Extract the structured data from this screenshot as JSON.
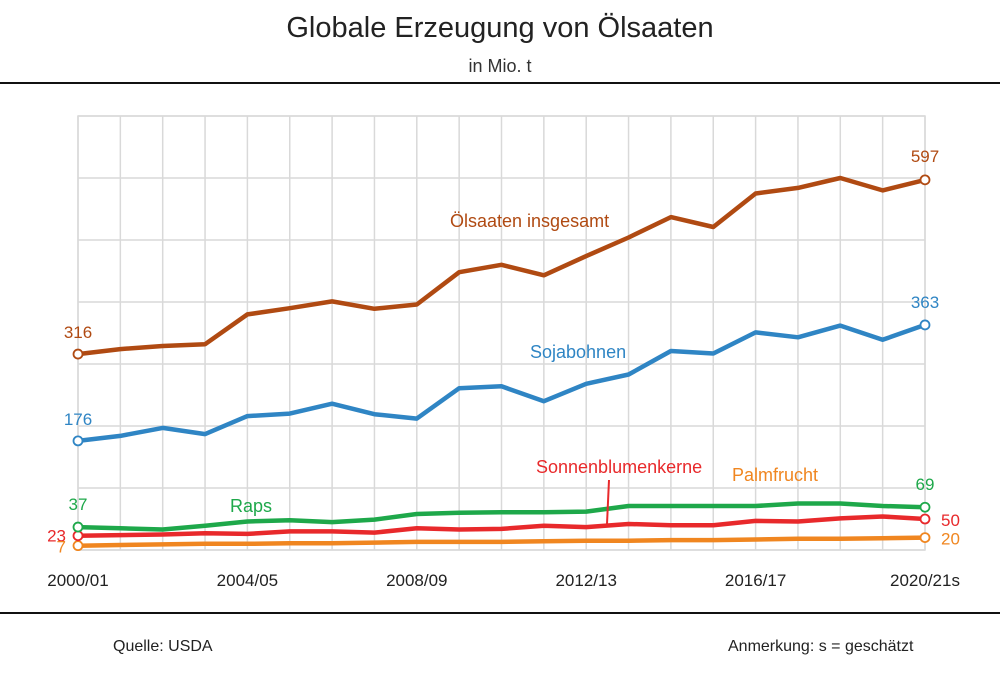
{
  "title": "Globale Erzeugung von Ölsaaten",
  "subtitle": "in Mio. t",
  "footer": {
    "source": "Quelle: USDA",
    "note": "Anmerkung: s = geschätzt"
  },
  "chart_data": {
    "type": "line",
    "title": "Globale Erzeugung von Ölsaaten",
    "subtitle": "in Mio. t",
    "x": [
      "2000/01",
      "2001/02",
      "2002/03",
      "2003/04",
      "2004/05",
      "2005/06",
      "2006/07",
      "2007/08",
      "2008/09",
      "2009/10",
      "2010/11",
      "2011/12",
      "2012/13",
      "2013/14",
      "2014/15",
      "2015/16",
      "2016/17",
      "2017/18",
      "2018/19",
      "2019/20",
      "2020/21s"
    ],
    "x_tick_labels": [
      "2000/01",
      "2004/05",
      "2008/09",
      "2012/13",
      "2016/17",
      "2020/21s"
    ],
    "ylim": [
      0,
      700
    ],
    "y_gridlines": [
      0,
      100,
      200,
      300,
      400,
      500,
      600,
      700
    ],
    "grid": true,
    "y_tick_labels_shown": false,
    "series": [
      {
        "name": "Ölsaaten insgesamt",
        "color": "#b04a12",
        "values": [
          316,
          324,
          329,
          332,
          380,
          390,
          401,
          389,
          396,
          448,
          460,
          443,
          474,
          504,
          537,
          521,
          575,
          584,
          600,
          580,
          597
        ],
        "start_label": "316",
        "end_label": "597"
      },
      {
        "name": "Sojabohnen",
        "color": "#2f85c4",
        "values": [
          176,
          184,
          197,
          187,
          216,
          220,
          236,
          219,
          212,
          261,
          264,
          240,
          268,
          283,
          321,
          317,
          351,
          343,
          362,
          339,
          363
        ],
        "start_label": "176",
        "end_label": "363"
      },
      {
        "name": "Raps",
        "color": "#1ea84a",
        "values": [
          37,
          35,
          33,
          39,
          46,
          48,
          45,
          49,
          58,
          60,
          61,
          61,
          62,
          71,
          71,
          71,
          71,
          75,
          75,
          71,
          69
        ],
        "start_label": "37",
        "end_label": "69"
      },
      {
        "name": "Sonnenblumenkerne",
        "color": "#e8292b",
        "values": [
          23,
          24,
          25,
          27,
          26,
          30,
          30,
          28,
          35,
          33,
          34,
          39,
          37,
          42,
          40,
          40,
          47,
          46,
          51,
          54,
          50
        ],
        "start_label": "23",
        "end_label": "50"
      },
      {
        "name": "Palmfrucht",
        "color": "#f08620",
        "values": [
          7,
          8,
          9,
          10,
          10,
          11,
          11,
          12,
          13,
          13,
          13,
          14,
          15,
          15,
          16,
          16,
          17,
          18,
          18,
          19,
          20
        ],
        "start_label": "7",
        "end_label": "20"
      }
    ]
  }
}
